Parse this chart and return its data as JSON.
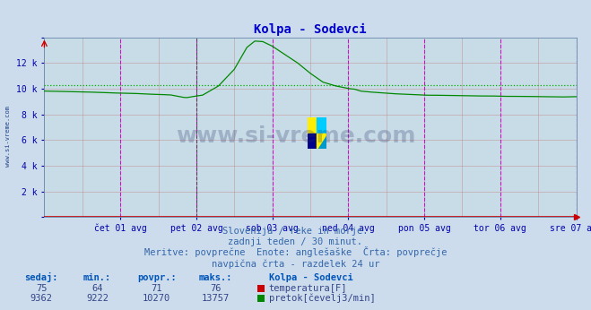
{
  "title": "Kolpa - Sodevci",
  "bg_color": "#ccdcec",
  "plot_bg_color": "#c8dce8",
  "title_color": "#0000cc",
  "tick_color": "#0000aa",
  "flow_color": "#008800",
  "temp_color": "#cc0000",
  "avg_line_color": "#00aa00",
  "grid_h_color": "#c08888",
  "grid_v_color": "#c08888",
  "magenta_color": "#cc00cc",
  "black_dashed_color": "#444444",
  "red_border_color": "#cc0000",
  "xmin": 0,
  "xmax": 336,
  "ymin": 0,
  "ymax": 14000,
  "yticks": [
    0,
    2000,
    4000,
    6000,
    8000,
    10000,
    12000,
    14000
  ],
  "ytick_labels": [
    "",
    "2 k",
    "4 k",
    "6 k",
    "8 k",
    "10 k",
    "12 k",
    ""
  ],
  "xtick_positions": [
    48,
    96,
    144,
    192,
    240,
    288,
    336
  ],
  "xtick_labels": [
    "čet 01 avg",
    "pet 02 avg",
    "sob 03 avg",
    "ned 04 avg",
    "pon 05 avg",
    "tor 06 avg",
    "sre 07 avg"
  ],
  "magenta_vlines": [
    48,
    96,
    144,
    192,
    240,
    288,
    336
  ],
  "black_dashed_vlines": [
    96
  ],
  "avg_value": 10270,
  "temp_sedaj": 75,
  "temp_min": 64,
  "temp_povpr": 71,
  "temp_maks": 76,
  "flow_sedaj": 9362,
  "flow_min": 9222,
  "flow_povpr": 10270,
  "flow_maks": 13757,
  "footer_line1": "Slovenija / reke in morje.",
  "footer_line2": "zadnji teden / 30 minut.",
  "footer_line3": "Meritve: povprečne  Enote: anglešaške  Črta: povprečje",
  "footer_line4": "navpična črta - razdelek 24 ur",
  "legend_title": "Kolpa - Sodevci",
  "legend_temp": "temperatura[F]",
  "legend_flow": "pretok[čevelj3/min]",
  "logo_colors": [
    "#ffff00",
    "#00ccff",
    "#00008b",
    "#0066cc"
  ]
}
